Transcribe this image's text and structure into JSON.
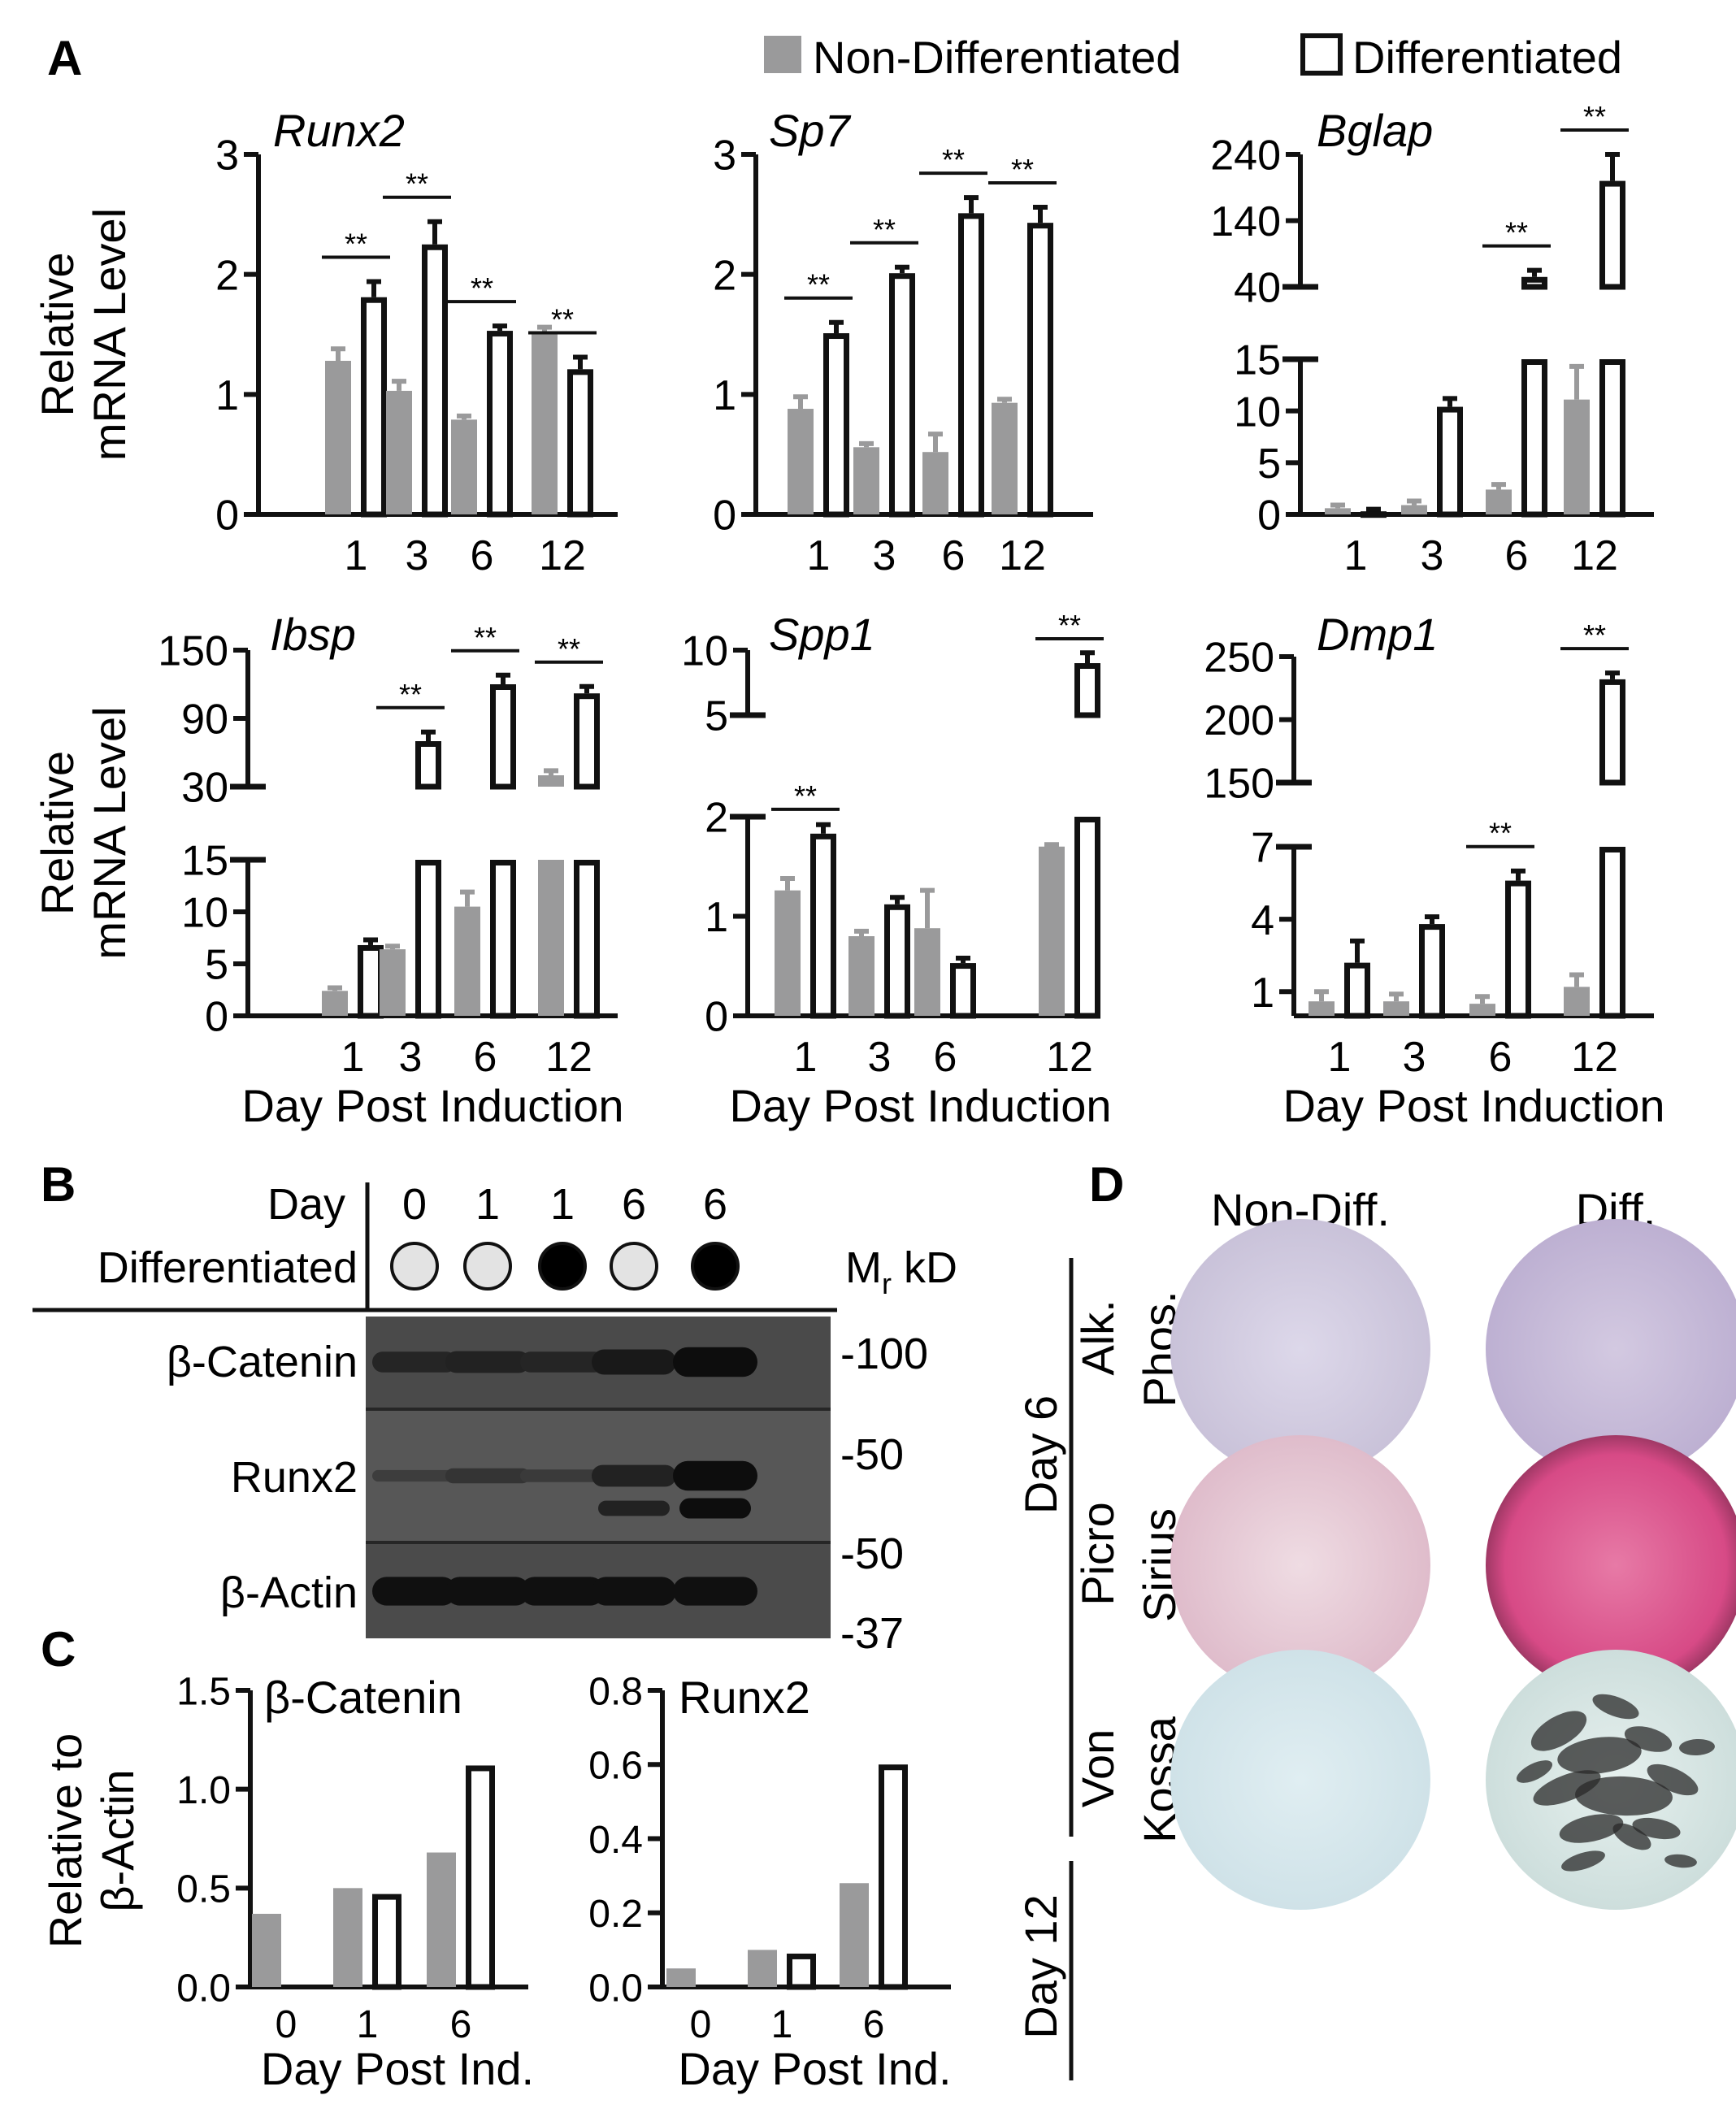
{
  "panel_labels": {
    "a": "A",
    "b": "B",
    "c": "C",
    "d": "D"
  },
  "legend": {
    "non_diff": "Non-Differentiated",
    "diff": "Differentiated"
  },
  "colors": {
    "non_diff": "#9a9a9b",
    "diff_fill": "#ffffff",
    "ink": "#111111"
  },
  "significance_mark": "**",
  "chart_data": [
    {
      "id": "runx2",
      "type": "bar",
      "title": "Runx2",
      "categories": [
        "1",
        "3",
        "6",
        "12"
      ],
      "series": [
        {
          "name": "Non-Differentiated",
          "values": [
            1.28,
            1.03,
            0.79,
            1.51
          ],
          "errors": [
            0.1,
            0.08,
            0.03,
            0.05
          ]
        },
        {
          "name": "Differentiated",
          "values": [
            1.81,
            2.25,
            1.53,
            1.21
          ],
          "errors": [
            0.13,
            0.19,
            0.04,
            0.1
          ]
        }
      ],
      "yticks": [
        "0",
        "1",
        "2",
        "3"
      ],
      "ylim": [
        0,
        3
      ],
      "ylabel": "Relative mRNA Level",
      "xlabel": "",
      "sig": [
        0,
        1,
        2,
        3
      ]
    },
    {
      "id": "sp7",
      "type": "bar",
      "title": "Sp7",
      "categories": [
        "1",
        "3",
        "6",
        "12"
      ],
      "series": [
        {
          "name": "Non-Differentiated",
          "values": [
            0.88,
            0.56,
            0.52,
            0.93
          ],
          "errors": [
            0.1,
            0.03,
            0.15,
            0.03
          ]
        },
        {
          "name": "Differentiated",
          "values": [
            1.51,
            2.01,
            2.51,
            2.43
          ],
          "errors": [
            0.09,
            0.05,
            0.13,
            0.13
          ]
        }
      ],
      "yticks": [
        "0",
        "1",
        "2",
        "3"
      ],
      "ylim": [
        0,
        3
      ],
      "ylabel": "",
      "xlabel": "",
      "sig": [
        0,
        1,
        2,
        3
      ]
    },
    {
      "id": "bglap",
      "type": "bar",
      "title": "Bglap",
      "categories": [
        "1",
        "3",
        "6",
        "12"
      ],
      "series": [
        {
          "name": "Non-Differentiated",
          "values": [
            0.6,
            0.9,
            2.4,
            11.1
          ],
          "errors": [
            0.3,
            0.4,
            0.5,
            3.2
          ]
        },
        {
          "name": "Differentiated",
          "values": [
            0.3,
            10.4,
            55,
            200
          ],
          "errors": [
            0.2,
            0.8,
            10,
            40
          ]
        }
      ],
      "yticks_lower": [
        "0",
        "5",
        "10",
        "15"
      ],
      "yticks_upper": [
        "40",
        "140",
        "240"
      ],
      "ylim_lower": [
        0,
        15
      ],
      "ylim_upper": [
        40,
        240
      ],
      "ylabel": "",
      "xlabel": "",
      "sig": [
        2,
        3
      ]
    },
    {
      "id": "ibsp",
      "type": "bar",
      "title": "Ibsp",
      "categories": [
        "1",
        "3",
        "6",
        "12"
      ],
      "series": [
        {
          "name": "Non-Differentiated",
          "values": [
            2.4,
            6.4,
            10.5,
            40
          ],
          "errors": [
            0.3,
            0.3,
            1.4,
            4
          ]
        },
        {
          "name": "Differentiated",
          "values": [
            6.8,
            70,
            120,
            112
          ],
          "errors": [
            0.5,
            8,
            8,
            6
          ]
        }
      ],
      "yticks_lower": [
        "0",
        "5",
        "10",
        "15"
      ],
      "yticks_upper": [
        "30",
        "90",
        "150"
      ],
      "ylim_lower": [
        0,
        15
      ],
      "ylim_upper": [
        30,
        150
      ],
      "ylabel": "Relative mRNA Level",
      "xlabel": "Day Post Induction",
      "sig": [
        1,
        2,
        3
      ]
    },
    {
      "id": "spp1",
      "type": "bar",
      "title": "Spp1",
      "categories": [
        "1",
        "3",
        "6",
        "12"
      ],
      "series": [
        {
          "name": "Non-Differentiated",
          "values": [
            1.26,
            0.8,
            0.88,
            1.7
          ],
          "errors": [
            0.12,
            0.05,
            0.38,
            0.02
          ]
        },
        {
          "name": "Differentiated",
          "values": [
            1.83,
            1.12,
            0.53,
            9
          ]
        },
        {
          "name": "Differentiated-err",
          "values": [
            0.09,
            0.07,
            0.05,
            0.8
          ]
        }
      ],
      "yticks_lower": [
        "0",
        "1",
        "2"
      ],
      "yticks_upper": [
        "5",
        "10"
      ],
      "ylim_lower": [
        0,
        2
      ],
      "ylim_upper": [
        5,
        10
      ],
      "ylabel": "",
      "xlabel": "Day Post Induction",
      "sig": [
        0,
        3
      ]
    },
    {
      "id": "dmp1",
      "type": "bar",
      "title": "Dmp1",
      "categories": [
        "1",
        "3",
        "6",
        "12"
      ],
      "series": [
        {
          "name": "Non-Differentiated",
          "values": [
            0.6,
            0.6,
            0.5,
            1.2
          ],
          "errors": [
            0.4,
            0.3,
            0.3,
            0.5
          ]
        },
        {
          "name": "Differentiated",
          "values": [
            2.2,
            3.8,
            5.6,
            232
          ],
          "errors": [
            0.9,
            0.3,
            0.4,
            5
          ]
        }
      ],
      "yticks_lower": [
        "1",
        "4",
        "7"
      ],
      "yticks_upper": [
        "150",
        "200",
        "250"
      ],
      "ylim_lower": [
        0,
        7
      ],
      "ylim_upper": [
        150,
        250
      ],
      "ylabel": "",
      "xlabel": "Day Post Induction",
      "sig": [
        2,
        3
      ]
    },
    {
      "id": "ctnnb",
      "type": "bar",
      "title": "β-Catenin",
      "categories": [
        "0",
        "1",
        "6"
      ],
      "series": [
        {
          "name": "Non-Differentiated",
          "values": [
            0.37,
            0.5,
            0.68
          ]
        },
        {
          "name": "Differentiated",
          "values": [
            null,
            0.47,
            1.12
          ]
        }
      ],
      "yticks": [
        "0.0",
        "0.5",
        "1.0",
        "1.5"
      ],
      "ylim": [
        0,
        1.5
      ],
      "ylabel": "Relative to β-Actin",
      "xlabel": "Day Post Ind."
    },
    {
      "id": "runx2wb",
      "type": "bar",
      "title": "Runx2",
      "categories": [
        "0",
        "1",
        "6"
      ],
      "series": [
        {
          "name": "Non-Differentiated",
          "values": [
            0.05,
            0.1,
            0.28
          ]
        },
        {
          "name": "Differentiated",
          "values": [
            null,
            0.09,
            0.6
          ]
        }
      ],
      "yticks": [
        "0.0",
        "0.2",
        "0.4",
        "0.6",
        "0.8"
      ],
      "ylim": [
        0,
        0.8
      ],
      "ylabel": "",
      "xlabel": "Day Post Ind."
    }
  ],
  "western": {
    "day_label": "Day",
    "diff_label": "Differentiated",
    "days": [
      "0",
      "1",
      "1",
      "6",
      "6"
    ],
    "differentiated": [
      false,
      false,
      true,
      false,
      true
    ],
    "mr_label": "M",
    "mr_sub": "r",
    "mr_unit": " kD",
    "rows": [
      {
        "label": "β-Catenin",
        "intensity": [
          0.55,
          0.6,
          0.55,
          0.75,
          0.95
        ],
        "markers": [
          "-100"
        ]
      },
      {
        "label": "Runx2",
        "intensity": [
          0.15,
          0.3,
          0.2,
          0.6,
          0.95
        ],
        "markers": [
          "-50"
        ]
      },
      {
        "label": "β-Actin",
        "intensity": [
          0.9,
          0.9,
          0.9,
          0.9,
          0.9
        ],
        "markers": [
          "-50",
          "-37"
        ]
      }
    ]
  },
  "staining": {
    "col_headers": [
      "Non-Diff.",
      "Diff."
    ],
    "day6": "Day 6",
    "day12": "Day 12",
    "rows": [
      {
        "label_a": "Alk.",
        "label_b": "Phos.",
        "colors": [
          "#d8d6e4",
          "#cfc7df"
        ]
      },
      {
        "label_a": "Picro",
        "label_b": "Sirius",
        "colors": [
          "#ead0da",
          "#dc5a92"
        ]
      },
      {
        "label_a": "Von",
        "label_b": "Kossa",
        "colors": [
          "#d8e8ec",
          "#d4e4e2"
        ]
      }
    ]
  }
}
